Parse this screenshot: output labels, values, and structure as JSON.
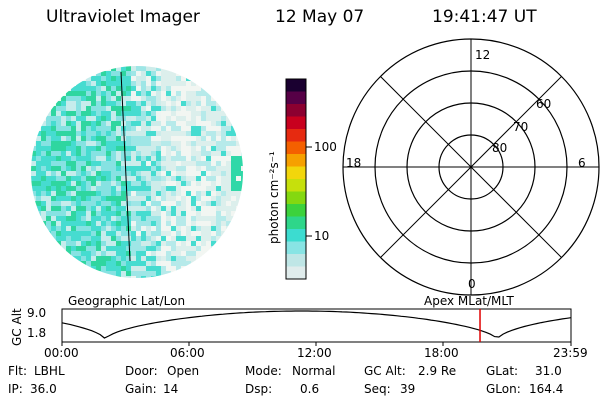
{
  "header": {
    "instrument": "Ultraviolet Imager",
    "date": "12 May 07",
    "time": "19:41:47 UT"
  },
  "colorbar": {
    "unit_label": "photon cm⁻²s⁻¹",
    "ticks": [
      "100",
      "10"
    ],
    "colors": [
      "#e0ecec",
      "#bfe6e6",
      "#88e4e4",
      "#3cdcd0",
      "#2ed68a",
      "#3cd23c",
      "#84d810",
      "#c6e00c",
      "#f2d60c",
      "#f6a000",
      "#f46000",
      "#e62a10",
      "#c8001e",
      "#8c0030",
      "#560046",
      "#1a0030"
    ]
  },
  "polar_plot": {
    "clock_labels": [
      "12",
      "18",
      "6",
      "0"
    ],
    "lat_labels": [
      "60",
      "70",
      "80"
    ]
  },
  "timeline": {
    "left_label": "Geographic Lat/Lon",
    "right_label": "Apex  MLat/MLT",
    "axis_title": "GC Alt",
    "y_ticks": [
      "9.0",
      "1.8"
    ],
    "x_ticks": [
      "00:00",
      "06:00",
      "12:00",
      "18:00",
      "23:59"
    ],
    "marker_color": "#e00000"
  },
  "info": {
    "row1": [
      {
        "label": "Flt:",
        "value": "LBHL"
      },
      {
        "label": "Door:",
        "value": "Open"
      },
      {
        "label": "Mode:",
        "value": "Normal"
      },
      {
        "label": "GC Alt:",
        "value": "2.9 Re"
      },
      {
        "label": "GLat:",
        "value": "31.0"
      }
    ],
    "row2": [
      {
        "label": "IP:",
        "value": "36.0"
      },
      {
        "label": "Gain:",
        "value": "14"
      },
      {
        "label": "Dsp:",
        "value": "0.6"
      },
      {
        "label": "Seq:",
        "value": "39"
      },
      {
        "label": "GLon:",
        "value": "164.4"
      }
    ]
  }
}
